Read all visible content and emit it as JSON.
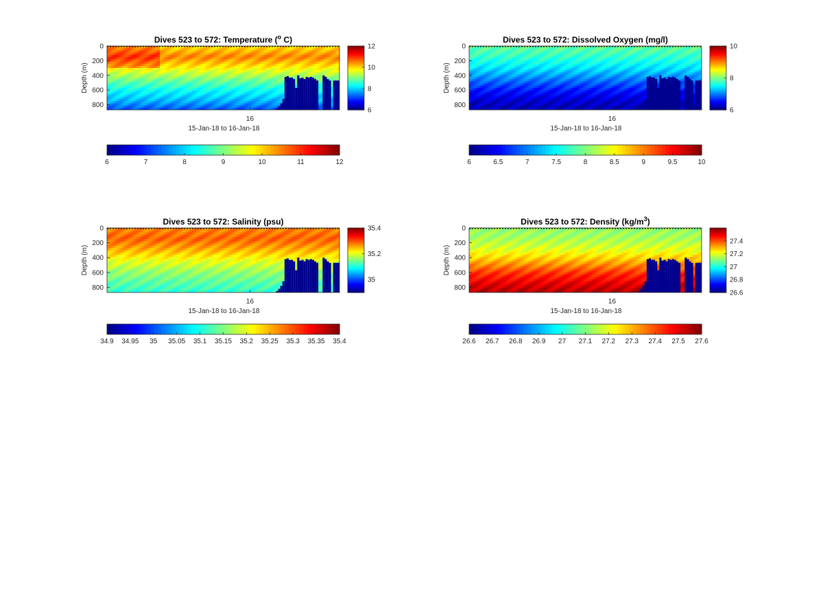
{
  "chart_data": [
    {
      "type": "heatmap",
      "variable": "temperature",
      "title": "Dives 523 to 572: Temperature (",
      "title_sup": "o",
      "title_tail": " C)",
      "ylabel": "Depth (m)",
      "xlabel": "15-Jan-18 to 16-Jan-18",
      "xtick_labels": [
        "16"
      ],
      "ytick_values": [
        0,
        200,
        400,
        600,
        800
      ],
      "ylim": [
        0,
        870
      ],
      "clim": [
        6,
        12
      ],
      "side_colorbar_ticks": [
        6,
        8,
        10,
        12
      ],
      "bottom_colorbar_ticks": [
        "6",
        "7",
        "8",
        "9",
        "10",
        "11",
        "12"
      ],
      "profile": {
        "depths": [
          0,
          150,
          300,
          450,
          600,
          750,
          870
        ],
        "values": [
          9.9,
          10.5,
          9.8,
          9.0,
          8.3,
          7.8,
          7.2
        ]
      },
      "no_data_below_m": [
        870,
        870,
        870,
        870,
        870,
        870,
        870,
        870,
        870,
        870,
        870,
        870,
        870,
        870,
        870,
        870,
        870,
        870,
        870,
        870,
        870,
        870,
        870,
        870,
        870,
        870,
        870,
        870,
        870,
        870,
        870,
        870,
        870,
        870,
        870,
        870,
        870,
        870,
        870,
        870,
        870,
        870,
        870,
        870,
        870,
        870,
        870,
        870,
        870,
        870,
        870,
        870,
        870,
        870,
        870,
        870,
        870,
        870,
        870,
        870,
        870,
        870,
        870,
        870,
        870,
        870,
        870,
        870,
        870,
        870,
        870,
        870,
        870,
        870,
        870,
        870,
        870,
        870,
        870,
        870,
        850,
        820,
        780,
        720,
        420,
        410,
        430,
        430,
        450,
        570,
        400,
        440,
        430,
        450,
        420,
        430,
        420,
        430,
        450,
        470,
        870,
        870,
        400,
        420,
        450,
        470,
        870,
        470,
        470,
        470
      ]
    },
    {
      "type": "heatmap",
      "variable": "oxygen",
      "title": "Dives 523 to 572: Dissolved Oxygen (mg/l)",
      "ylabel": "Depth (m)",
      "xlabel": "15-Jan-18 to 16-Jan-18",
      "xtick_labels": [
        "16"
      ],
      "ytick_values": [
        0,
        200,
        400,
        600,
        800
      ],
      "ylim": [
        0,
        870
      ],
      "clim": [
        6,
        10
      ],
      "side_colorbar_ticks": [
        6,
        8,
        10
      ],
      "bottom_colorbar_ticks": [
        "6",
        "6.5",
        "7",
        "7.5",
        "8",
        "8.5",
        "9",
        "9.5",
        "10"
      ],
      "profile": {
        "depths": [
          0,
          150,
          300,
          450,
          600,
          750,
          870
        ],
        "values": [
          7.9,
          7.7,
          7.4,
          7.0,
          6.6,
          6.3,
          6.2
        ]
      },
      "no_data_below_m": [
        870,
        870,
        870,
        870,
        870,
        870,
        870,
        870,
        870,
        870,
        870,
        870,
        870,
        870,
        870,
        870,
        870,
        870,
        870,
        870,
        870,
        870,
        870,
        870,
        870,
        870,
        870,
        870,
        870,
        870,
        870,
        870,
        870,
        870,
        870,
        870,
        870,
        870,
        870,
        870,
        870,
        870,
        870,
        870,
        870,
        870,
        870,
        870,
        870,
        870,
        870,
        870,
        870,
        870,
        870,
        870,
        870,
        870,
        870,
        870,
        870,
        870,
        870,
        870,
        870,
        870,
        870,
        870,
        870,
        870,
        870,
        870,
        870,
        870,
        870,
        870,
        870,
        870,
        870,
        870,
        850,
        820,
        780,
        720,
        420,
        410,
        430,
        430,
        450,
        570,
        400,
        440,
        430,
        450,
        420,
        430,
        420,
        430,
        450,
        470,
        870,
        870,
        400,
        420,
        450,
        470,
        870,
        470,
        470,
        470
      ]
    },
    {
      "type": "heatmap",
      "variable": "salinity",
      "title": "Dives 523 to 572: Salinity (psu)",
      "ylabel": "Depth (m)",
      "xlabel": "15-Jan-18 to 16-Jan-18",
      "xtick_labels": [
        "16"
      ],
      "ytick_values": [
        0,
        200,
        400,
        600,
        800
      ],
      "ylim": [
        0,
        870
      ],
      "clim": [
        34.9,
        35.4
      ],
      "side_colorbar_ticks": [
        35,
        35.2,
        35.4
      ],
      "bottom_colorbar_ticks": [
        "34.9",
        "34.95",
        "35",
        "35.05",
        "35.1",
        "35.15",
        "35.2",
        "35.25",
        "35.3",
        "35.35",
        "35.4"
      ],
      "profile": {
        "depths": [
          0,
          150,
          300,
          450,
          600,
          750,
          870
        ],
        "values": [
          35.27,
          35.29,
          35.25,
          35.2,
          35.16,
          35.13,
          35.11
        ]
      },
      "no_data_below_m": [
        870,
        870,
        870,
        870,
        870,
        870,
        870,
        870,
        870,
        870,
        870,
        870,
        870,
        870,
        870,
        870,
        870,
        870,
        870,
        870,
        870,
        870,
        870,
        870,
        870,
        870,
        870,
        870,
        870,
        870,
        870,
        870,
        870,
        870,
        870,
        870,
        870,
        870,
        870,
        870,
        870,
        870,
        870,
        870,
        870,
        870,
        870,
        870,
        870,
        870,
        870,
        870,
        870,
        870,
        870,
        870,
        870,
        870,
        870,
        870,
        870,
        870,
        870,
        870,
        870,
        870,
        870,
        870,
        870,
        870,
        870,
        870,
        870,
        870,
        870,
        870,
        870,
        870,
        870,
        870,
        850,
        820,
        780,
        720,
        420,
        410,
        430,
        430,
        450,
        570,
        400,
        440,
        430,
        450,
        420,
        430,
        420,
        430,
        450,
        470,
        870,
        870,
        400,
        420,
        450,
        470,
        870,
        470,
        470,
        470
      ]
    },
    {
      "type": "heatmap",
      "variable": "density",
      "title": "Dives 523 to 572: Density (kg/m",
      "title_sup": "3",
      "title_tail": ")",
      "ylabel": "Depth (m)",
      "xlabel": "15-Jan-18 to 16-Jan-18",
      "xtick_labels": [
        "16"
      ],
      "ytick_values": [
        0,
        200,
        400,
        600,
        800
      ],
      "ylim": [
        0,
        870
      ],
      "clim": [
        26.6,
        27.6
      ],
      "side_colorbar_ticks": [
        26.6,
        26.8,
        27,
        27.2,
        27.4
      ],
      "bottom_colorbar_ticks": [
        "26.6",
        "26.7",
        "26.8",
        "26.9",
        "27",
        "27.1",
        "27.2",
        "27.3",
        "27.4",
        "27.5",
        "27.6"
      ],
      "profile": {
        "depths": [
          0,
          150,
          300,
          450,
          600,
          750,
          870
        ],
        "values": [
          27.12,
          27.14,
          27.2,
          27.3,
          27.42,
          27.5,
          27.55
        ]
      },
      "no_data_below_m": [
        870,
        870,
        870,
        870,
        870,
        870,
        870,
        870,
        870,
        870,
        870,
        870,
        870,
        870,
        870,
        870,
        870,
        870,
        870,
        870,
        870,
        870,
        870,
        870,
        870,
        870,
        870,
        870,
        870,
        870,
        870,
        870,
        870,
        870,
        870,
        870,
        870,
        870,
        870,
        870,
        870,
        870,
        870,
        870,
        870,
        870,
        870,
        870,
        870,
        870,
        870,
        870,
        870,
        870,
        870,
        870,
        870,
        870,
        870,
        870,
        870,
        870,
        870,
        870,
        870,
        870,
        870,
        870,
        870,
        870,
        870,
        870,
        870,
        870,
        870,
        870,
        870,
        870,
        870,
        870,
        850,
        820,
        780,
        720,
        420,
        410,
        430,
        430,
        450,
        570,
        400,
        440,
        430,
        450,
        420,
        430,
        420,
        430,
        450,
        470,
        870,
        870,
        400,
        420,
        450,
        470,
        870,
        470,
        470,
        470
      ]
    }
  ],
  "colors": {
    "no_data": "#00008f",
    "axis": "#262626",
    "background": "#ffffff"
  },
  "colormap": "jet"
}
